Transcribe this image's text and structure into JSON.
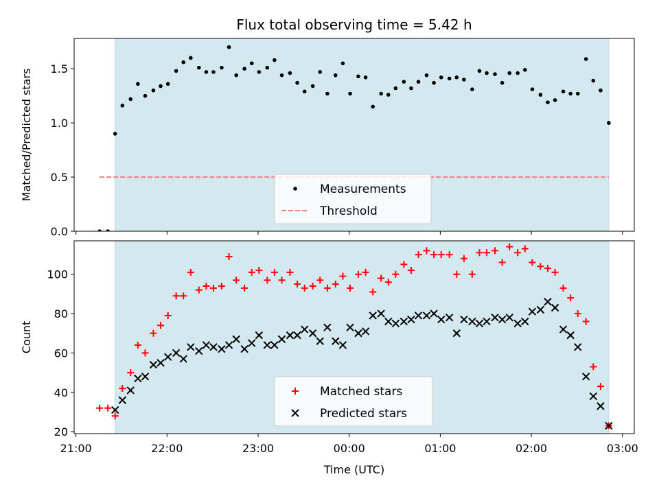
{
  "chart_data": [
    {
      "type": "scatter",
      "title": "Flux total observing time = 5.42 h",
      "xlabel": "",
      "ylabel": "Matched/Predicted stars",
      "xlim": [
        20.98,
        27.13
      ],
      "ylim": [
        0,
        1.78
      ],
      "yticks": [
        0.0,
        0.5,
        1.0,
        1.5
      ],
      "yticklabels": [
        "0.0",
        "0.5",
        "1.0",
        "1.5"
      ],
      "xticks": [
        21,
        22,
        23,
        24,
        25,
        26,
        27
      ],
      "shaded_interval": [
        21.43,
        26.85
      ],
      "shade_color": "#d4e9ef",
      "threshold": {
        "name": "Threshold",
        "value": 0.5,
        "x_range": [
          21.26,
          26.85
        ],
        "color": "#f08080"
      },
      "legend": {
        "position": "lower-center",
        "entries": [
          "Measurements",
          "Threshold"
        ]
      },
      "series": [
        {
          "name": "Measurements",
          "color": "#000000",
          "marker": "dot",
          "x": [
            21.26,
            21.35,
            21.43,
            21.51,
            21.6,
            21.68,
            21.76,
            21.85,
            21.93,
            22.01,
            22.1,
            22.18,
            22.26,
            22.35,
            22.43,
            22.51,
            22.6,
            22.68,
            22.76,
            22.85,
            22.93,
            23.01,
            23.1,
            23.18,
            23.26,
            23.35,
            23.43,
            23.51,
            23.6,
            23.68,
            23.76,
            23.85,
            23.93,
            24.01,
            24.1,
            24.18,
            24.26,
            24.35,
            24.43,
            24.51,
            24.6,
            24.68,
            24.76,
            24.85,
            24.93,
            25.01,
            25.1,
            25.18,
            25.26,
            25.35,
            25.43,
            25.51,
            25.6,
            25.68,
            25.76,
            25.85,
            25.93,
            26.01,
            26.1,
            26.18,
            26.26,
            26.35,
            26.43,
            26.51,
            26.6,
            26.68,
            26.76,
            26.85
          ],
          "y": [
            0.0,
            0.0,
            0.9,
            1.16,
            1.22,
            1.36,
            1.25,
            1.3,
            1.34,
            1.36,
            1.48,
            1.56,
            1.6,
            1.51,
            1.47,
            1.47,
            1.51,
            1.7,
            1.44,
            1.5,
            1.55,
            1.47,
            1.51,
            1.58,
            1.44,
            1.46,
            1.37,
            1.29,
            1.34,
            1.47,
            1.27,
            1.44,
            1.55,
            1.27,
            1.43,
            1.42,
            1.15,
            1.27,
            1.26,
            1.32,
            1.38,
            1.32,
            1.38,
            1.44,
            1.37,
            1.42,
            1.41,
            1.42,
            1.4,
            1.31,
            1.48,
            1.46,
            1.45,
            1.37,
            1.46,
            1.46,
            1.49,
            1.31,
            1.26,
            1.19,
            1.21,
            1.29,
            1.27,
            1.27,
            1.59,
            1.39,
            1.3,
            1.0
          ]
        }
      ]
    },
    {
      "type": "scatter",
      "title": "",
      "xlabel": "Time (UTC)",
      "ylabel": "Count",
      "xlim": [
        20.98,
        27.13
      ],
      "ylim": [
        19,
        117
      ],
      "yticks": [
        20,
        40,
        60,
        80,
        100
      ],
      "yticklabels": [
        "20",
        "40",
        "60",
        "80",
        "100"
      ],
      "xticks": [
        21,
        22,
        23,
        24,
        25,
        26,
        27
      ],
      "xticklabels": [
        "21:00",
        "22:00",
        "23:00",
        "00:00",
        "01:00",
        "02:00",
        "03:00"
      ],
      "shaded_interval": [
        21.43,
        26.85
      ],
      "shade_color": "#d4e9ef",
      "legend": {
        "position": "lower-center",
        "entries": [
          "Matched stars",
          "Predicted stars"
        ]
      },
      "series": [
        {
          "name": "Matched stars",
          "color": "#ff0000",
          "marker": "plus",
          "x": [
            21.26,
            21.35,
            21.43,
            21.51,
            21.6,
            21.68,
            21.76,
            21.85,
            21.93,
            22.01,
            22.1,
            22.18,
            22.26,
            22.35,
            22.43,
            22.51,
            22.6,
            22.68,
            22.76,
            22.85,
            22.93,
            23.01,
            23.1,
            23.18,
            23.26,
            23.35,
            23.43,
            23.51,
            23.6,
            23.68,
            23.76,
            23.85,
            23.93,
            24.01,
            24.1,
            24.18,
            24.26,
            24.35,
            24.43,
            24.51,
            24.6,
            24.68,
            24.76,
            24.85,
            24.93,
            25.01,
            25.1,
            25.18,
            25.26,
            25.35,
            25.43,
            25.51,
            25.6,
            25.68,
            25.76,
            25.85,
            25.93,
            26.01,
            26.1,
            26.18,
            26.26,
            26.35,
            26.43,
            26.51,
            26.6,
            26.68,
            26.76,
            26.85
          ],
          "y": [
            32,
            32,
            28,
            42,
            50,
            64,
            60,
            70,
            74,
            79,
            89,
            89,
            101,
            92,
            94,
            93,
            94,
            109,
            97,
            93,
            101,
            102,
            97,
            101,
            97,
            101,
            95,
            93,
            94,
            97,
            93,
            95,
            99,
            93,
            100,
            101,
            91,
            98,
            96,
            100,
            105,
            102,
            110,
            112,
            110,
            110,
            110,
            100,
            108,
            100,
            111,
            111,
            112,
            106,
            114,
            111,
            113,
            106,
            104,
            103,
            101,
            93,
            88,
            80,
            76,
            53,
            43,
            23
          ]
        },
        {
          "name": "Predicted stars",
          "color": "#000000",
          "marker": "x",
          "x": [
            21.43,
            21.51,
            21.6,
            21.68,
            21.76,
            21.85,
            21.93,
            22.01,
            22.1,
            22.18,
            22.26,
            22.35,
            22.43,
            22.51,
            22.6,
            22.68,
            22.76,
            22.85,
            22.93,
            23.01,
            23.1,
            23.18,
            23.26,
            23.35,
            23.43,
            23.51,
            23.6,
            23.68,
            23.76,
            23.85,
            23.93,
            24.01,
            24.1,
            24.18,
            24.26,
            24.35,
            24.43,
            24.51,
            24.6,
            24.68,
            24.76,
            24.85,
            24.93,
            25.01,
            25.1,
            25.18,
            25.26,
            25.35,
            25.43,
            25.51,
            25.6,
            25.68,
            25.76,
            25.85,
            25.93,
            26.01,
            26.1,
            26.18,
            26.26,
            26.35,
            26.43,
            26.51,
            26.6,
            26.68,
            26.76,
            26.85
          ],
          "y": [
            31,
            36,
            41,
            47,
            48,
            54,
            55,
            58,
            60,
            57,
            63,
            61,
            64,
            63,
            62,
            64,
            67,
            62,
            65,
            69,
            64,
            64,
            67,
            69,
            69,
            72,
            70,
            66,
            73,
            66,
            64,
            73,
            70,
            71,
            79,
            80,
            76,
            75,
            76,
            77,
            79,
            79,
            80,
            77,
            78,
            70,
            77,
            76,
            75,
            76,
            78,
            77,
            78,
            75,
            76,
            81,
            82,
            86,
            83,
            72,
            69,
            63,
            48,
            38,
            33,
            23
          ]
        }
      ]
    }
  ]
}
